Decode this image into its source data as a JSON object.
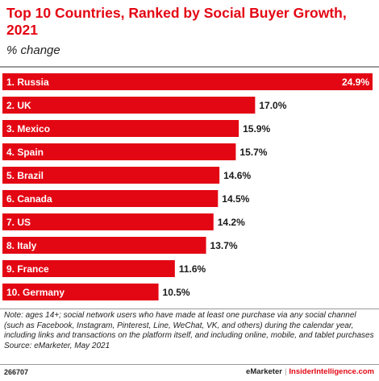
{
  "header": {
    "title": "Top 10 Countries, Ranked by Social Buyer Growth, 2021",
    "subtitle": "% change"
  },
  "chart_data": {
    "type": "bar",
    "orientation": "horizontal",
    "categories": [
      "1. Russia",
      "2. UK",
      "3. Mexico",
      "4. Spain",
      "5. Brazil",
      "6. Canada",
      "7. US",
      "8. Italy",
      "9. France",
      "10. Germany"
    ],
    "values": [
      24.9,
      17.0,
      15.9,
      15.7,
      14.6,
      14.5,
      14.2,
      13.7,
      11.6,
      10.5
    ],
    "value_labels": [
      "24.9%",
      "17.0%",
      "15.9%",
      "15.7%",
      "14.6%",
      "14.5%",
      "14.2%",
      "13.7%",
      "11.6%",
      "10.5%"
    ],
    "xlim": [
      0,
      24.9
    ],
    "grid": false,
    "bar_color": "#e30613",
    "title": "Top 10 Countries, Ranked by Social Buyer Growth, 2021",
    "subtitle": "% change"
  },
  "footer": {
    "note": "Note: ages 14+; social network users who have made at least one purchase via any social channel (such as Facebook, Instagram, Pinterest, Line, WeChat, VK, and others) during the calendar year, including links and transactions on the platform itself, and including online, mobile, and tablet purchases",
    "source": "Source: eMarketer, May 2021",
    "chart_id": "266707",
    "brand_left": "eMarketer",
    "brand_sep": "|",
    "brand_right": "InsiderIntelligence.com"
  }
}
